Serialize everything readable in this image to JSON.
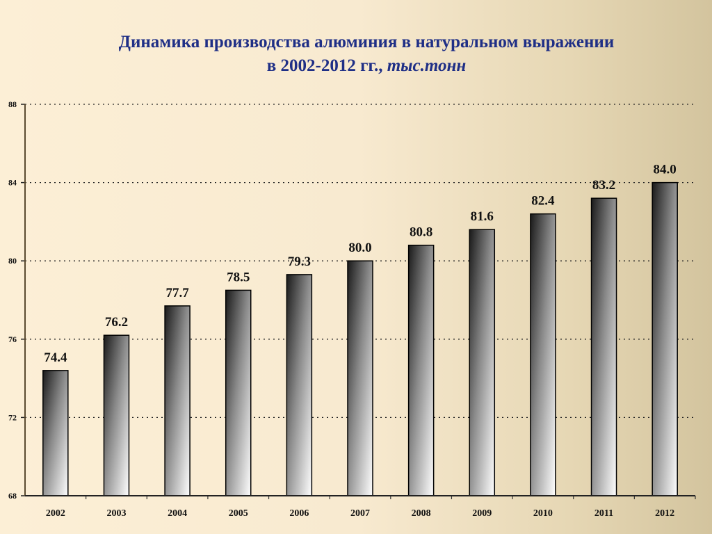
{
  "chart_data": {
    "type": "bar",
    "title_line1": "Динамика производства алюминия в натуральном выражении",
    "title_line2": "в 2002-2012 гг., ",
    "title_unit": "тыс.тонн",
    "categories": [
      "2002",
      "2003",
      "2004",
      "2005",
      "2006",
      "2007",
      "2008",
      "2009",
      "2010",
      "2011",
      "2012"
    ],
    "values": [
      74.4,
      76.2,
      77.7,
      78.5,
      79.3,
      80.0,
      80.8,
      81.6,
      82.4,
      83.2,
      84.0
    ],
    "labels": [
      "74.4",
      "76.2",
      "77.7",
      "78.5",
      "79.3",
      "80.0",
      "80.8",
      "81.6",
      "82.4",
      "83.2",
      "84.0"
    ],
    "ylim": [
      68,
      88
    ],
    "yticks": [
      68,
      72,
      76,
      80,
      84,
      88
    ],
    "grid": "dotted horizontal",
    "xlabel": "",
    "ylabel": "",
    "title_color": "#1f2f86"
  }
}
